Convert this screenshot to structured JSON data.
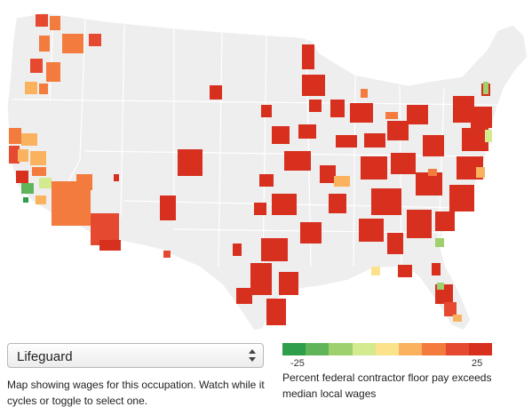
{
  "map": {
    "land_color": "#eeeeee",
    "border_color": "#ffffff"
  },
  "occupation_select": {
    "selected": "Lifeguard",
    "icon": "updown-arrows-icon"
  },
  "caption_left": "Map showing wages for this occupation. Watch while it cycles or toggle to select one.",
  "legend": {
    "colors": [
      "#2e9e4a",
      "#60b45a",
      "#9fd06e",
      "#d4ea8e",
      "#fde28c",
      "#fbb25e",
      "#f37b3e",
      "#e54a30",
      "#d7301f"
    ],
    "min_label": "-25",
    "max_label": "25",
    "caption": "Percent federal contractor floor pay exceeds median local wages"
  }
}
